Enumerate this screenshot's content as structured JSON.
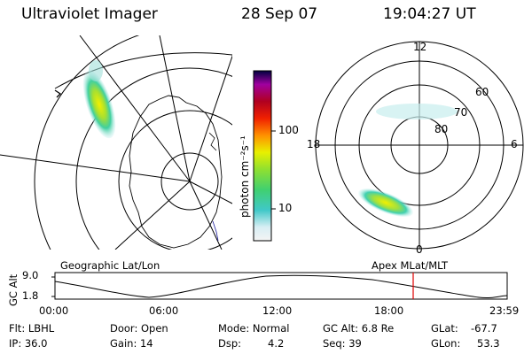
{
  "header": {
    "title": "Ultraviolet Imager",
    "date": "28 Sep 07",
    "time": "19:04:27 UT"
  },
  "colorbar": {
    "unit_label": "photon cm⁻²s⁻¹",
    "ticks": [
      "100",
      "10"
    ]
  },
  "polar_map": {
    "mlt_labels": {
      "top": "12",
      "left": "18",
      "right": "6",
      "bottom": "0"
    },
    "lat_labels": [
      "60",
      "70",
      "80"
    ]
  },
  "timeline": {
    "left_label": "Geographic Lat/Lon",
    "right_label": "Apex MLat/MLT",
    "axis_title": "GC Alt",
    "y_ticks": [
      "9.0",
      "1.8"
    ],
    "x_ticks": [
      "00:00",
      "06:00",
      "12:00",
      "18:00",
      "23:59"
    ],
    "marker_color": "#e00000"
  },
  "status": {
    "row1": {
      "flt": "Flt: LBHL",
      "door": "Door: Open",
      "mode": "Mode: Normal",
      "gc_alt": "GC Alt: 6.8 Re",
      "glat_label": "GLat:",
      "glat_value": "-67.7"
    },
    "row2": {
      "ip": "IP: 36.0",
      "gain": "Gain: 14",
      "dsp_label": "Dsp:",
      "dsp_value": "4.2",
      "seq": "Seq: 39",
      "glon_label": "GLon:",
      "glon_value": "53.3"
    }
  }
}
